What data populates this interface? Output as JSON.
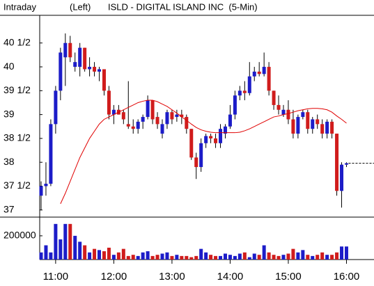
{
  "header": {
    "left": "Intraday",
    "scale": "(Left)",
    "title": "ISLD - DIGITAL ISLAND INC  (5-Min)"
  },
  "chart_data": [
    {
      "type": "candlestick",
      "up_color": "#1c1cc8",
      "down_color": "#d01c1c",
      "ylim": [
        36.88,
        41.08
      ],
      "yticks": [
        37,
        {
          "value": 37.5,
          "label": "37 1/2"
        },
        38,
        {
          "value": 38.5,
          "label": "38 1/2"
        },
        39,
        {
          "value": 39.5,
          "label": "39 1/2"
        },
        40,
        {
          "value": 40.5,
          "label": "40 1/2"
        }
      ],
      "open": [
        37.3,
        37.5,
        37.55,
        38.8,
        39.5,
        40.2,
        40.5,
        40.0,
        40.0,
        40.4,
        39.95,
        40.0,
        39.9,
        39.95,
        39.5,
        39.0,
        39.1,
        39.05,
        38.8,
        38.75,
        38.7,
        38.85,
        38.95,
        39.3,
        38.95,
        38.6,
        38.8,
        39.05,
        38.95,
        39.0,
        38.95,
        38.7,
        38.1,
        37.9,
        38.4,
        38.55,
        38.5,
        38.4,
        38.6,
        38.75,
        39.0,
        39.4,
        39.5,
        39.45,
        39.8,
        39.9,
        39.85,
        40.0,
        39.5,
        39.2,
        39.0,
        39.1,
        38.9,
        38.6,
        38.95,
        39.05,
        38.7,
        38.9,
        38.8,
        38.6,
        38.85,
        38.6,
        37.4,
        37.95
      ],
      "high": [
        37.6,
        38.0,
        38.9,
        39.6,
        40.4,
        40.7,
        40.65,
        40.3,
        40.5,
        40.4,
        40.2,
        40.1,
        40.0,
        39.95,
        39.6,
        39.2,
        39.2,
        39.1,
        39.7,
        38.9,
        38.9,
        39.0,
        39.4,
        39.3,
        39.05,
        38.9,
        39.1,
        39.1,
        39.1,
        39.1,
        39.0,
        38.7,
        38.2,
        38.5,
        38.6,
        38.6,
        38.6,
        38.8,
        38.8,
        39.2,
        39.5,
        39.6,
        39.7,
        40.1,
        40.0,
        40.1,
        40.3,
        40.1,
        39.5,
        39.4,
        39.2,
        39.3,
        39.1,
        39.0,
        39.1,
        39.1,
        38.95,
        39.0,
        38.9,
        38.9,
        38.9,
        38.6,
        38.0,
        38.0
      ],
      "low": [
        37.0,
        37.3,
        37.5,
        38.6,
        39.3,
        39.6,
        40.1,
        39.9,
        39.8,
        39.9,
        39.8,
        39.8,
        39.7,
        39.4,
        38.9,
        38.8,
        39.0,
        38.8,
        38.7,
        38.6,
        38.6,
        38.7,
        38.9,
        38.8,
        38.7,
        38.5,
        38.7,
        38.8,
        38.85,
        38.8,
        38.6,
        38.05,
        37.65,
        37.8,
        38.3,
        38.4,
        38.3,
        38.3,
        38.5,
        38.7,
        38.9,
        39.3,
        39.3,
        39.4,
        39.7,
        39.8,
        39.8,
        39.4,
        39.1,
        39.0,
        38.95,
        38.8,
        38.5,
        38.5,
        38.9,
        38.6,
        38.6,
        38.7,
        38.5,
        38.5,
        38.5,
        37.3,
        37.05,
        37.9
      ],
      "close": [
        37.5,
        37.55,
        38.8,
        39.5,
        40.3,
        40.5,
        40.2,
        40.1,
        40.4,
        39.95,
        40.0,
        39.9,
        39.95,
        39.5,
        39.0,
        39.1,
        39.0,
        38.9,
        38.75,
        38.7,
        38.85,
        38.95,
        39.3,
        38.9,
        38.8,
        38.8,
        39.05,
        38.9,
        39.0,
        38.95,
        38.7,
        38.1,
        37.9,
        38.4,
        38.55,
        38.5,
        38.4,
        38.7,
        38.75,
        39.0,
        39.4,
        39.5,
        39.45,
        39.8,
        39.9,
        39.85,
        40.0,
        39.5,
        39.2,
        39.1,
        39.1,
        38.9,
        38.6,
        38.95,
        39.05,
        38.7,
        38.9,
        38.8,
        38.6,
        38.85,
        38.6,
        37.4,
        37.95,
        37.98
      ],
      "series": [
        {
          "color": "#e00000",
          "values": [
            null,
            null,
            null,
            null,
            37.13,
            37.35,
            37.6,
            37.85,
            38.1,
            38.3,
            38.5,
            38.65,
            38.8,
            38.9,
            38.95,
            39.0,
            39.05,
            39.1,
            39.15,
            39.2,
            39.25,
            39.28,
            39.3,
            39.3,
            39.27,
            39.22,
            39.17,
            39.1,
            39.03,
            38.95,
            38.88,
            38.8,
            38.73,
            38.68,
            38.65,
            38.63,
            38.62,
            38.62,
            38.62,
            38.62,
            38.62,
            38.63,
            38.66,
            38.7,
            38.75,
            38.8,
            38.85,
            38.9,
            38.95,
            38.97,
            39.0,
            39.02,
            39.05,
            39.08,
            39.1,
            39.12,
            39.13,
            39.13,
            39.12,
            39.1,
            39.05,
            38.97,
            38.9,
            38.82
          ]
        }
      ]
    },
    {
      "type": "bar",
      "categories": [
        null,
        null,
        null,
        "11:00",
        null,
        null,
        null,
        null,
        null,
        null,
        null,
        null,
        null,
        null,
        null,
        "12:00",
        null,
        null,
        null,
        null,
        null,
        null,
        null,
        null,
        null,
        null,
        null,
        "13:00",
        null,
        null,
        null,
        null,
        null,
        null,
        null,
        null,
        null,
        null,
        null,
        "14:00",
        null,
        null,
        null,
        null,
        null,
        null,
        null,
        null,
        null,
        null,
        null,
        "15:00",
        null,
        null,
        null,
        null,
        null,
        null,
        null,
        null,
        null,
        null,
        null,
        "16:00"
      ],
      "values": [
        60000,
        120000,
        60000,
        300000,
        170000,
        300000,
        300000,
        200000,
        150000,
        120000,
        60000,
        90000,
        80000,
        70000,
        100000,
        40000,
        60000,
        90000,
        30000,
        40000,
        30000,
        60000,
        70000,
        30000,
        40000,
        50000,
        60000,
        30000,
        40000,
        30000,
        30000,
        20000,
        30000,
        90000,
        60000,
        40000,
        30000,
        30000,
        50000,
        40000,
        30000,
        50000,
        60000,
        20000,
        50000,
        40000,
        120000,
        60000,
        40000,
        30000,
        40000,
        50000,
        90000,
        60000,
        80000,
        40000,
        30000,
        40000,
        60000,
        40000,
        40000,
        60000,
        110000,
        110000
      ],
      "ylim": [
        0,
        340000
      ],
      "yticks": [
        200000
      ]
    }
  ]
}
